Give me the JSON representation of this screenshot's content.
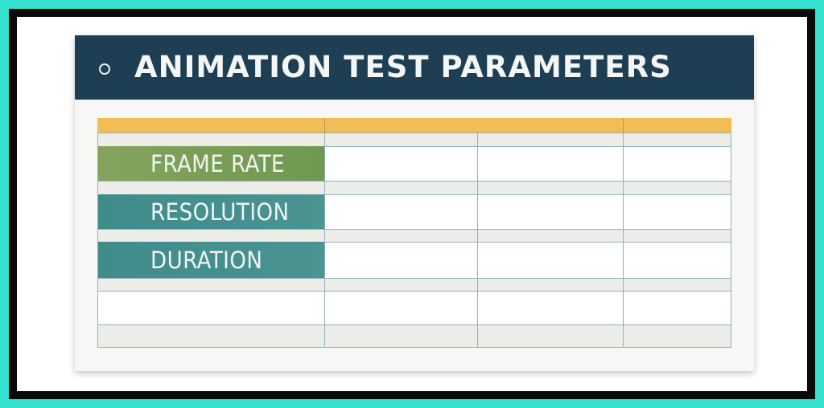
{
  "header": {
    "title": "ANIMATION TEST PARAMETERS"
  },
  "table": {
    "rows": [
      {
        "label": "FRAME RATE"
      },
      {
        "label": "RESOLUTION"
      },
      {
        "label": "DURATION"
      }
    ]
  },
  "colors": {
    "header": "#1e3f53",
    "accent_bar": "#f2bd55",
    "frame_rate_label": "#7a9e58",
    "resolution_label": "#418e8c",
    "duration_label": "#418e8c",
    "border": "#34e2cf"
  }
}
